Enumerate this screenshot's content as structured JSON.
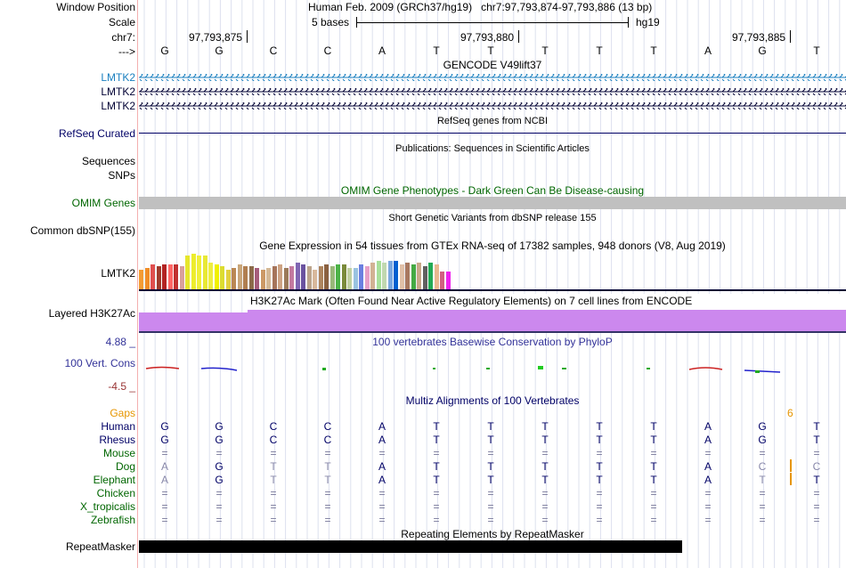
{
  "header": {
    "window_position_label": "Window Position",
    "window_position": "Human Feb. 2009 (GRCh37/hg19)   chr7:97,793,874-97,793,886 (13 bp)",
    "scale_label": "Scale",
    "scale_text": "5 bases",
    "scale_assembly": "hg19",
    "chrom_label": "chr7:",
    "arrow_label": "--->",
    "positions": [
      "97,793,875",
      "97,793,880",
      "97,793,885"
    ]
  },
  "sequence": [
    "G",
    "G",
    "C",
    "C",
    "A",
    "T",
    "T",
    "T",
    "T",
    "T",
    "A",
    "G",
    "T"
  ],
  "gencode": {
    "title": "GENCODE V49lift37",
    "tracks": [
      {
        "label": "LMTK2",
        "color": "#1a7fbf"
      },
      {
        "label": "LMTK2",
        "color": "#000033"
      },
      {
        "label": "LMTK2",
        "color": "#000033"
      }
    ]
  },
  "refseq": {
    "title": "RefSeq genes from NCBI",
    "label": "RefSeq Curated"
  },
  "publications": {
    "title": "Publications: Sequences in Scientific Articles",
    "label": "Sequences"
  },
  "snps_label": "SNPs",
  "omim": {
    "title": "OMIM Gene Phenotypes - Dark Green Can Be Disease-causing",
    "label": "OMIM Genes"
  },
  "dbsnp": {
    "title": "Short Genetic Variants from dbSNP release 155",
    "label": "Common dbSNP(155)"
  },
  "gtex": {
    "title": "Gene Expression in 54 tissues from GTEx RNA-seq of 17382 samples, 948 donors (V8, Aug 2019)",
    "label": "LMTK2",
    "levels": [
      0.55,
      0.6,
      0.7,
      0.65,
      0.7,
      0.7,
      0.7,
      0.65,
      0.95,
      1.0,
      0.95,
      0.95,
      0.75,
      0.7,
      0.65,
      0.55,
      0.6,
      0.7,
      0.65,
      0.65,
      0.6,
      0.55,
      0.6,
      0.65,
      0.7,
      0.6,
      0.65,
      0.75,
      0.7,
      0.65,
      0.55,
      0.65,
      0.7,
      0.65,
      0.7,
      0.7,
      0.6,
      0.6,
      0.7,
      0.65,
      0.75,
      0.8,
      0.75,
      0.8,
      0.8,
      0.7,
      0.75,
      0.7,
      0.75,
      0.65,
      0.75,
      0.7,
      0.5,
      0.5
    ],
    "colors": [
      "#f39c34",
      "#f08d28",
      "#e05050",
      "#a03a2c",
      "#b22222",
      "#ff6666",
      "#c03030",
      "#d9a09b",
      "#e6e62c",
      "#eded2d",
      "#f0f03a",
      "#e8e835",
      "#eeee40",
      "#f0f000",
      "#dcdc30",
      "#e2d040",
      "#bb8855",
      "#c9a67a",
      "#b07e50",
      "#8b6a4a",
      "#a55d7b",
      "#cc9966",
      "#d4b896",
      "#a6745a",
      "#cda384",
      "#9b7a5a",
      "#c47aa0",
      "#8066b3",
      "#6a52a0",
      "#bca48c",
      "#d8b89c",
      "#ad845e",
      "#8a6040",
      "#99b87a",
      "#4cb347",
      "#7a8a3a",
      "#c0d0a0",
      "#99c2e0",
      "#6a7fe0",
      "#e6a0c8",
      "#d2b294",
      "#a8e09a",
      "#c0d8b0",
      "#7aa8e0",
      "#0060d0",
      "#e0c0a8",
      "#a87860",
      "#44aa44",
      "#c8a888",
      "#606060",
      "#22aa55",
      "#e8b890",
      "#d06080",
      "#ee22ee"
    ]
  },
  "h3k27ac": {
    "title": "H3K27Ac Mark (Often Found Near Active Regulatory Elements) on 7 cell lines from ENCODE",
    "label": "Layered H3K27Ac"
  },
  "conservation": {
    "title": "100 vertebrates Basewise Conservation by PhyloP",
    "label": "100 Vert. Cons",
    "max": "4.88 _",
    "min": "-4.5 _"
  },
  "multiz": {
    "title": "Multiz Alignments of 100 Vertebrates",
    "gaps_label": "Gaps",
    "gap_value": "6",
    "species": [
      {
        "name": "Human",
        "color": "#000066",
        "bases": [
          "G",
          "G",
          "C",
          "C",
          "A",
          "T",
          "T",
          "T",
          "T",
          "T",
          "A",
          "G",
          "T"
        ]
      },
      {
        "name": "Rhesus",
        "color": "#000066",
        "bases": [
          "G",
          "G",
          "C",
          "C",
          "A",
          "T",
          "T",
          "T",
          "T",
          "T",
          "A",
          "G",
          "T"
        ]
      },
      {
        "name": "Mouse",
        "color": "#006600",
        "bases": [
          "=",
          "=",
          "=",
          "=",
          "=",
          "=",
          "=",
          "=",
          "=",
          "=",
          "=",
          "=",
          "="
        ]
      },
      {
        "name": "Dog",
        "color": "#006600",
        "bases": [
          "A",
          "G",
          "T",
          "T",
          "A",
          "T",
          "T",
          "T",
          "T",
          "T",
          "A",
          "C",
          "C"
        ]
      },
      {
        "name": "Elephant",
        "color": "#006600",
        "bases": [
          "A",
          "G",
          "T",
          "T",
          "A",
          "T",
          "T",
          "T",
          "T",
          "T",
          "A",
          "T",
          "T"
        ]
      },
      {
        "name": "Chicken",
        "color": "#006600",
        "bases": [
          "=",
          "=",
          "=",
          "=",
          "=",
          "=",
          "=",
          "=",
          "=",
          "=",
          "=",
          "=",
          "="
        ]
      },
      {
        "name": "X_tropicalis",
        "color": "#006600",
        "bases": [
          "=",
          "=",
          "=",
          "=",
          "=",
          "=",
          "=",
          "=",
          "=",
          "=",
          "=",
          "=",
          "="
        ]
      },
      {
        "name": "Zebrafish",
        "color": "#006600",
        "bases": [
          "=",
          "=",
          "=",
          "=",
          "=",
          "=",
          "=",
          "=",
          "=",
          "=",
          "=",
          "=",
          "="
        ]
      }
    ]
  },
  "repeatmasker": {
    "title": "Repeating Elements by RepeatMasker",
    "label": "RepeatMasker"
  },
  "colors": {
    "gencode_blue": "#1a7fbf",
    "dark_navy": "#000033",
    "omim_gray": "#c0c0c0",
    "h3k27ac_purple": "#cc88ee",
    "phylop_blue": "#333399",
    "gap_orange": "#e69500"
  }
}
